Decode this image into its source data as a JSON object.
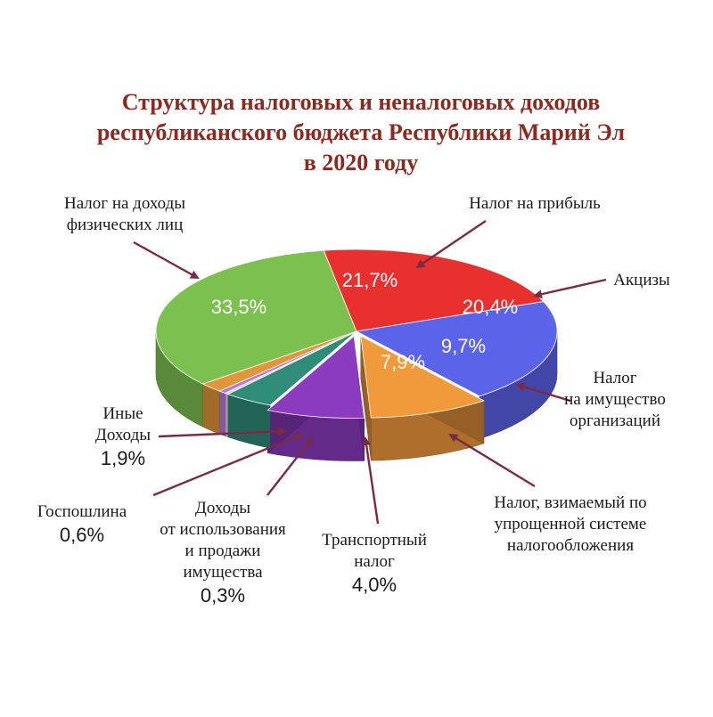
{
  "chart_data": {
    "type": "pie",
    "title": [
      "Структура налоговых и неналоговых доходов",
      "республиканского бюджета Республики Марий Эл",
      "в 2020 году"
    ],
    "series": [
      {
        "name": "Налог на доходы физических лиц",
        "label_lines": [
          "Налог на доходы",
          "физических лиц"
        ],
        "value": 33.5,
        "value_label": "33,5%",
        "color": "#7cc04f"
      },
      {
        "name": "Налог на прибыль",
        "label_lines": [
          "Налог на прибыль"
        ],
        "value": 21.7,
        "value_label": "21,7%",
        "color": "#e8312f"
      },
      {
        "name": "Акцизы",
        "label_lines": [
          "Акцизы"
        ],
        "value": 20.4,
        "value_label": "20,4%",
        "color": "#5b63e8"
      },
      {
        "name": "Налог на имущество организаций",
        "label_lines": [
          "Налог",
          "на имущество",
          "организаций"
        ],
        "value": 9.7,
        "value_label": "9,7%",
        "color": "#f09a3c"
      },
      {
        "name": "Налог, взимаемый по упрощенной системе налогообложения",
        "label_lines": [
          "Налог, взимаемый по",
          "упрощенной системе",
          "налогообложения"
        ],
        "value": 7.9,
        "value_label": "7,9%",
        "color": "#8b3bc0"
      },
      {
        "name": "Транспортный налог",
        "label_lines": [
          "Транспортный",
          "налог"
        ],
        "value": 4.0,
        "value_label": "4,0%",
        "color": "#2f8c78"
      },
      {
        "name": "Доходы от использования и продажи имущества",
        "label_lines": [
          "Доходы",
          "от использования",
          "и продажи",
          "имущества"
        ],
        "value": 0.3,
        "value_label": "0,3%",
        "color": "#f3c0e0"
      },
      {
        "name": "Госпошлина",
        "label_lines": [
          "Госпошлина"
        ],
        "value": 0.6,
        "value_label": "0,6%",
        "color": "#b07be0"
      },
      {
        "name": "Иные Доходы",
        "label_lines": [
          "Иные",
          "Доходы"
        ],
        "value": 1.9,
        "value_label": "1,9%",
        "color": "#e0963a"
      }
    ],
    "arrow_color": "#7a2a45"
  }
}
